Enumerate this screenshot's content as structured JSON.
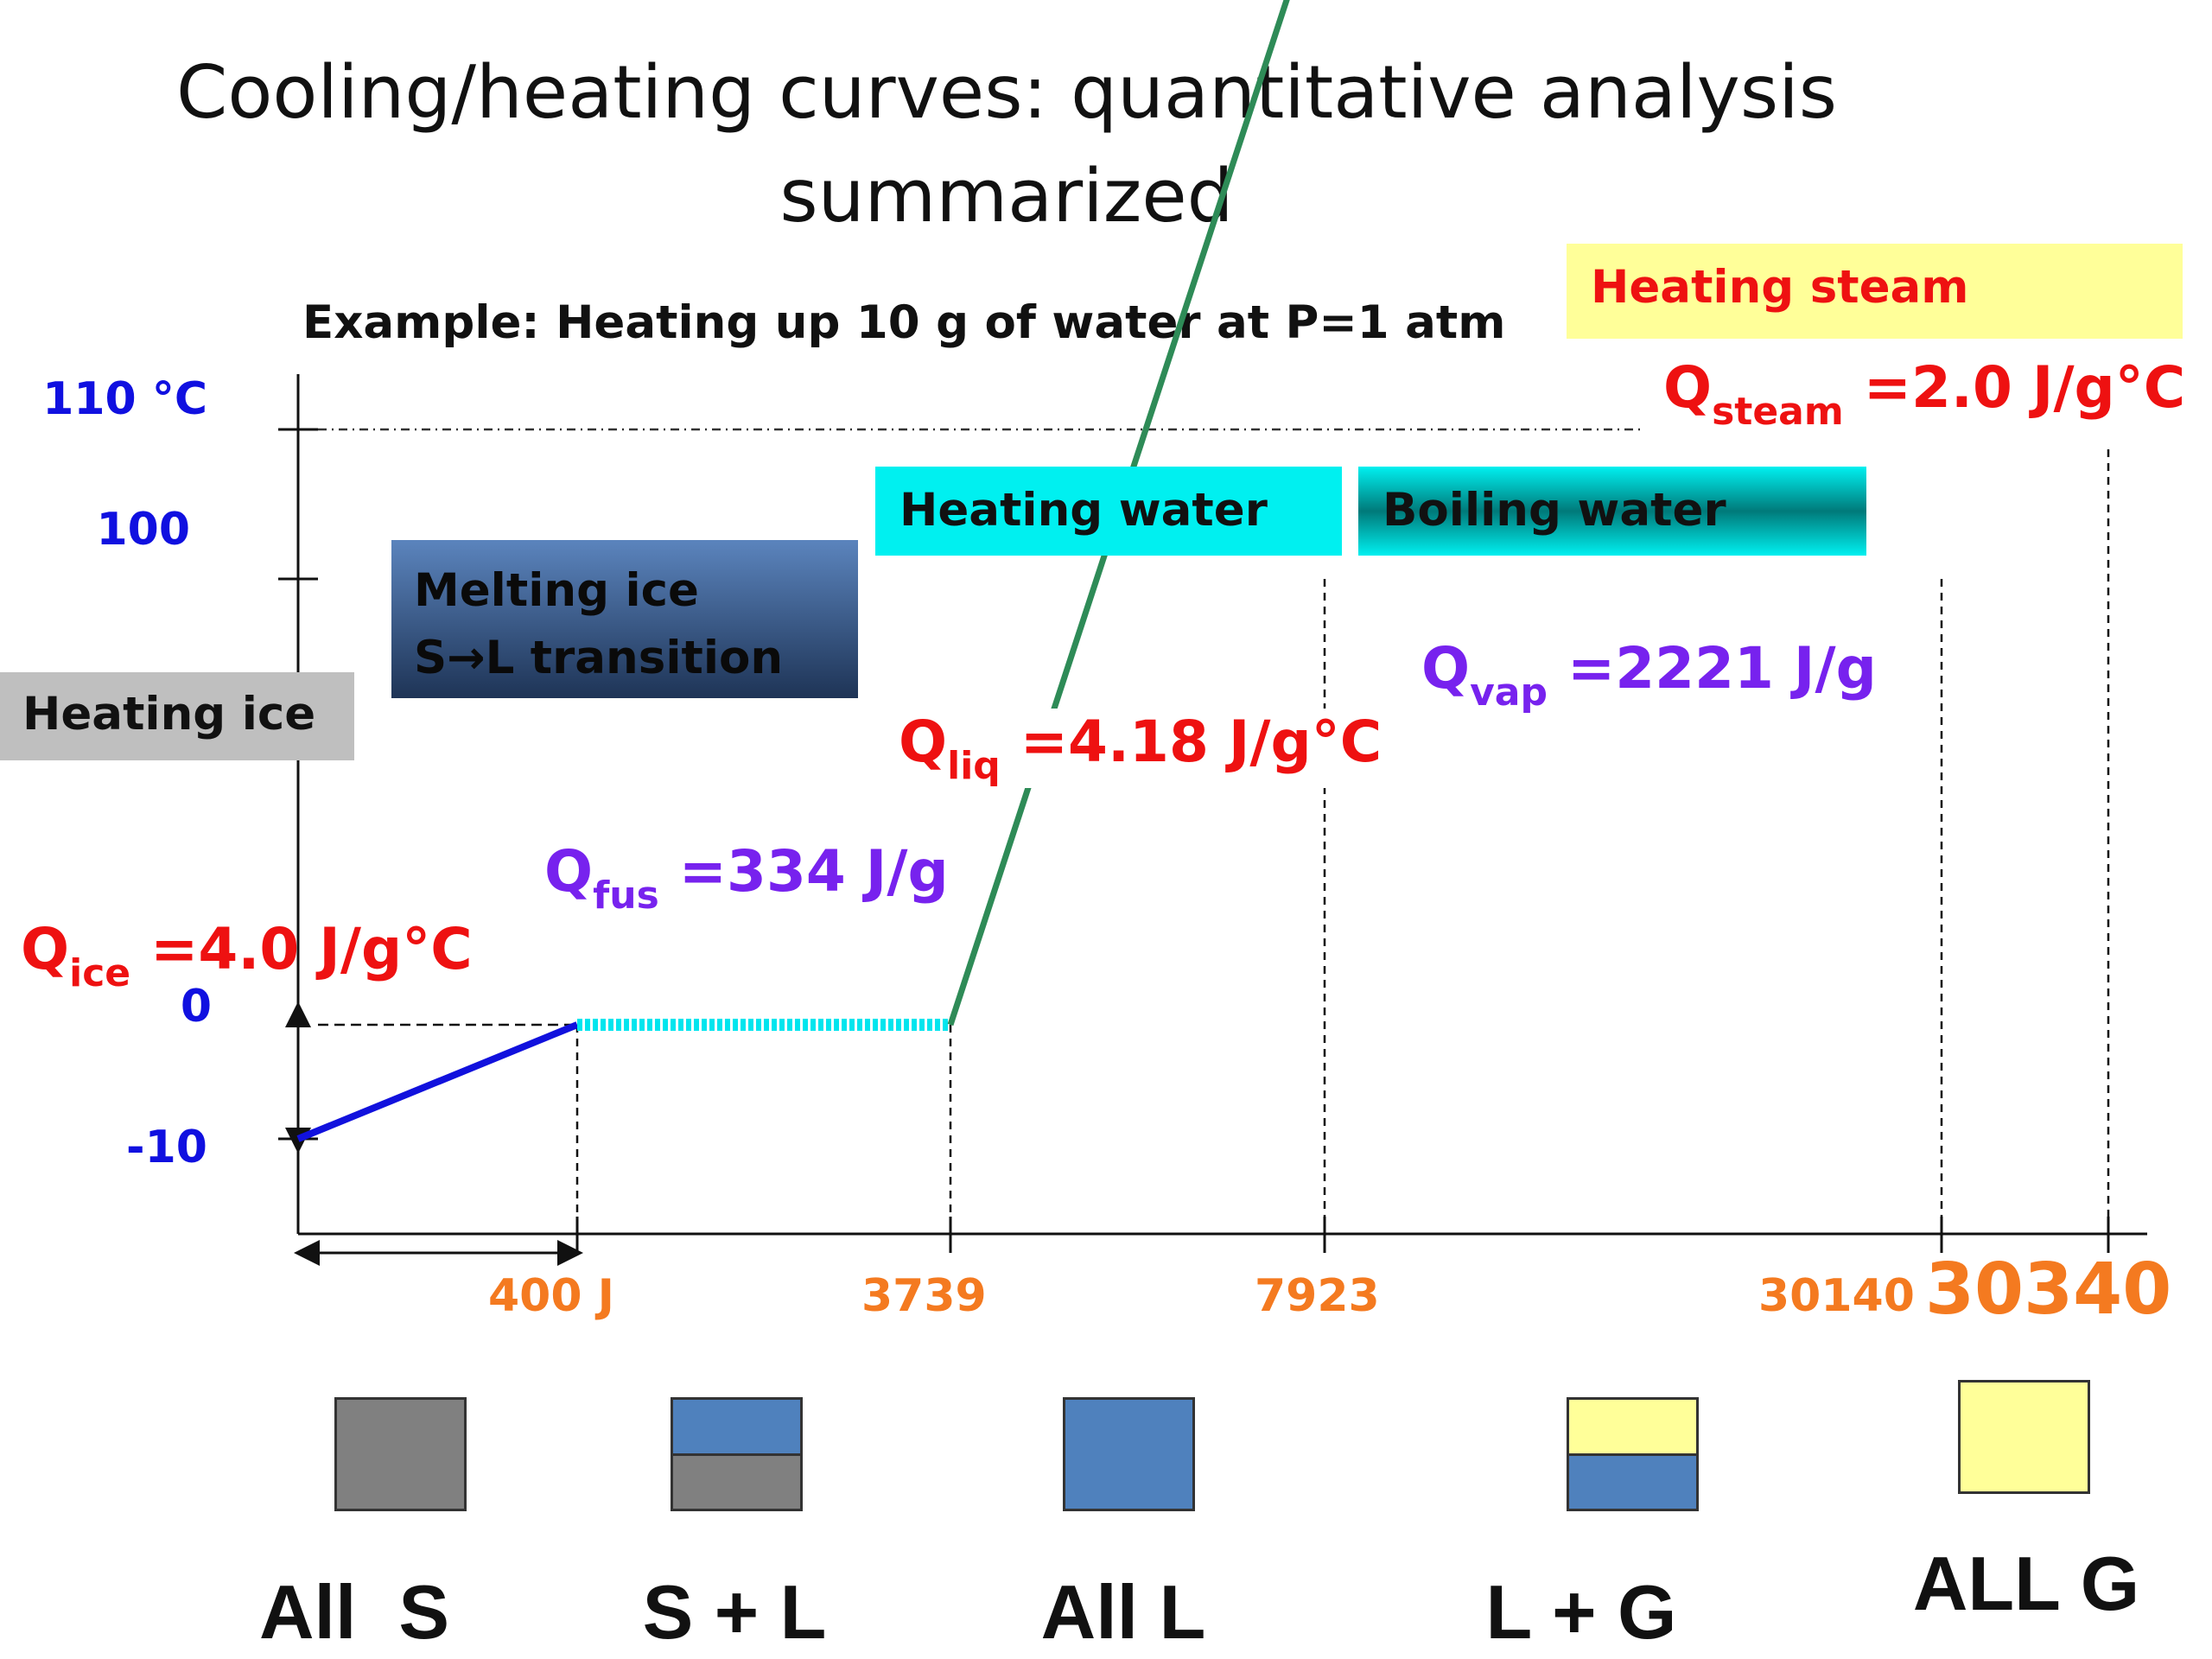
{
  "title": "Cooling/heating curves: quantitative analysis summarized",
  "subtitle": "Example: Heating up 10 g of water at P=1 atm",
  "colors": {
    "ice_line": "#1111dd",
    "melting_line": "#00e5ee",
    "liquid_line": "#2e8b57",
    "boiling_line": "#ff2020",
    "steam_line": "#ff0000",
    "q_red": "#ee1111",
    "q_purple": "#7722ee",
    "axis_orange": "#f47a20",
    "axis_blue": "#1010e0",
    "solid_gray": "#808080",
    "liquid_blue": "#4f81bd",
    "gas_yellow": "#ffff99"
  },
  "boxes": {
    "heating_ice": "Heating ice",
    "melting_ice_line1": "Melting ice",
    "melting_ice_line2": "S→L transition",
    "heating_water": "Heating water",
    "boiling_water": "Boiling water",
    "heating_steam": "Heating steam"
  },
  "q_labels": {
    "ice": {
      "q": "Q",
      "sub": "ice",
      "value": " =4.0 J/g°C"
    },
    "fus": {
      "q": "Q",
      "sub": "fus",
      "value": " =334 J/g"
    },
    "liq": {
      "q": "Q",
      "sub": "liq",
      "value": " =4.18 J/g°C"
    },
    "vap": {
      "q": "Q",
      "sub": "vap",
      "value": " =2221 J/g"
    },
    "steam": {
      "q": "Q",
      "sub": "steam",
      "value": " =2.0 J/g°C"
    }
  },
  "phases": [
    {
      "label": "All  S",
      "swatch": "solid"
    },
    {
      "label": "S + L",
      "swatch": "solid-liquid"
    },
    {
      "label": "All L",
      "swatch": "liquid"
    },
    {
      "label": "L + G",
      "swatch": "liquid-gas"
    },
    {
      "label": "ALL G",
      "swatch": "gas"
    }
  ],
  "chart_data": {
    "type": "line",
    "title": "Cooling/heating curves: quantitative analysis summarized",
    "xlabel": "",
    "ylabel": "",
    "y_ticks": [
      "-10",
      "0",
      "100",
      "110 °C"
    ],
    "x_ticks": [
      "400 J",
      "3739",
      "7923",
      "30140",
      "30340"
    ],
    "segments": [
      {
        "name": "Heating ice",
        "points": [
          [
            0,
            -10
          ],
          [
            400,
            0
          ]
        ]
      },
      {
        "name": "Melting ice",
        "points": [
          [
            400,
            0
          ],
          [
            3739,
            0
          ]
        ]
      },
      {
        "name": "Heating water",
        "points": [
          [
            3739,
            0
          ],
          [
            7923,
            100
          ]
        ]
      },
      {
        "name": "Boiling water",
        "points": [
          [
            7923,
            100
          ],
          [
            30140,
            100
          ]
        ]
      },
      {
        "name": "Heating steam",
        "points": [
          [
            30140,
            100
          ],
          [
            30340,
            110
          ]
        ]
      }
    ],
    "ylim": [
      -10,
      110
    ],
    "x_scale": "not to scale"
  }
}
